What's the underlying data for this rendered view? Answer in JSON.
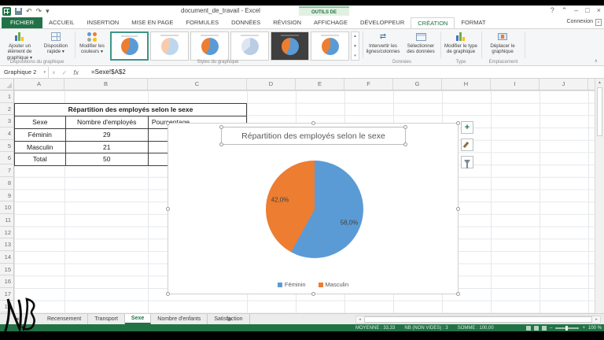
{
  "colors": {
    "excel_green": "#217346",
    "pie_blue": "#5b9bd5",
    "pie_orange": "#ed7d31"
  },
  "icons": {
    "undo": "↶",
    "redo": "↷",
    "dropdown": "▾",
    "help": "?",
    "ribbon_options": "⌃",
    "minimize": "–",
    "restore": "□",
    "close": "×",
    "cancel": "×",
    "enter": "✓",
    "swap": "⇄",
    "new_sheet": "⊕",
    "collapse_ribbon": "∧",
    "left": "◂",
    "right": "▸",
    "up": "▲",
    "down": "▼",
    "plus": "+"
  },
  "titlebar": {
    "title": "document_de_travail - Excel",
    "context_tab_group": "OUTILS DE GRAPHIQUE",
    "connexion_label": "Connexion"
  },
  "ribbon_tabs": {
    "active": "CRÉATION",
    "items": [
      {
        "label": "FICHIER",
        "style": "file"
      },
      {
        "label": "ACCUEIL"
      },
      {
        "label": "INSERTION"
      },
      {
        "label": "MISE EN PAGE"
      },
      {
        "label": "FORMULES"
      },
      {
        "label": "DONNÉES"
      },
      {
        "label": "RÉVISION"
      },
      {
        "label": "AFFICHAGE"
      },
      {
        "label": "DÉVELOPPEUR"
      },
      {
        "label": "CRÉATION",
        "style": "active"
      },
      {
        "label": "FORMAT"
      }
    ]
  },
  "ribbon": {
    "add_element_label": "Ajouter un élément de graphique ▾",
    "quick_layout_label": "Disposition rapide ▾",
    "change_colors_label": "Modifier les couleurs ▾",
    "swap_rows_label": "Intervertir les lignes/colonnes",
    "select_data_label": "Sélectionner des données",
    "change_type_label": "Modifier le type de graphique",
    "move_chart_label": "Déplacer le graphique",
    "group_labels": {
      "layouts": "Dispositions du graphique",
      "styles": "Styles du graphique",
      "data": "Données",
      "type": "Type",
      "location": "Emplacement"
    },
    "style_gallery": [
      {
        "name": "Style 1",
        "variant": "selected"
      },
      {
        "name": "Style 2",
        "variant": "light"
      },
      {
        "name": "Style 3",
        "variant": "normal"
      },
      {
        "name": "Style 4",
        "variant": "mono"
      },
      {
        "name": "Style 5",
        "variant": "dark"
      },
      {
        "name": "Style 6",
        "variant": "normal"
      }
    ]
  },
  "formula_bar": {
    "name_box": "Graphique 2",
    "fx_label": "fx",
    "formula": "=Sexe!$A$2"
  },
  "sheet": {
    "column_letters": [
      "A",
      "B",
      "C",
      "D",
      "E",
      "F",
      "G",
      "H",
      "I",
      "J"
    ],
    "row_numbers": [
      "1",
      "2",
      "3",
      "4",
      "5",
      "6",
      "7",
      "8",
      "9",
      "10",
      "11",
      "12",
      "13",
      "14",
      "15",
      "16",
      "17",
      "18"
    ],
    "table": {
      "title": "Répartition des employés selon le sexe",
      "headers": [
        "Sexe",
        "Nombre d'employés",
        "Pourcentage"
      ],
      "rows": [
        [
          "Féminin",
          "29",
          ""
        ],
        [
          "Masculin",
          "21",
          ""
        ],
        [
          "Total",
          "50",
          ""
        ]
      ]
    }
  },
  "chart_data": {
    "type": "pie",
    "title": "Répartition des employés selon le sexe",
    "categories": [
      "Féminin",
      "Masculin"
    ],
    "values": [
      58.0,
      42.0
    ],
    "value_labels": [
      "58,0%",
      "42,0%"
    ],
    "source_counts": [
      29,
      21
    ],
    "colors": [
      "#5b9bd5",
      "#ed7d31"
    ],
    "legend_position": "bottom",
    "start_angle_deg": 0,
    "direction": "clockwise"
  },
  "sheet_tabs": {
    "active": "Sexe",
    "items": [
      {
        "label": "Recensement"
      },
      {
        "label": "Transport"
      },
      {
        "label": "Sexe",
        "active": true
      },
      {
        "label": "Nombre d'enfants"
      },
      {
        "label": "Satisfaction"
      }
    ]
  },
  "status_bar": {
    "aggregates": [
      "MOYENNE : 33,33",
      "NB (NON VIDES) : 3",
      "SOMME : 100,00"
    ],
    "zoom_label": "100 %"
  }
}
